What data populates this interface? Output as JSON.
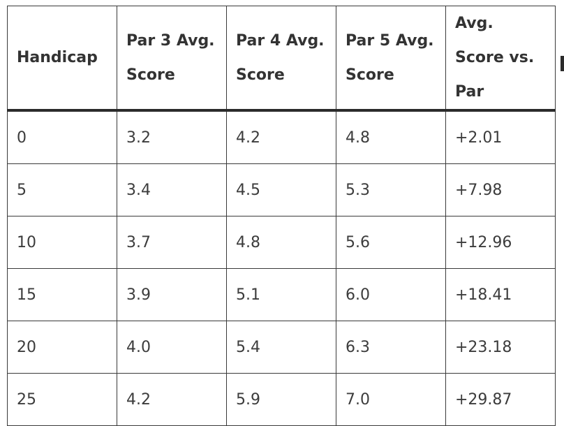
{
  "table": {
    "headers": [
      "Handicap",
      "Par 3 Avg. Score",
      "Par 4 Avg. Score",
      "Par 5 Avg. Score",
      "Avg. Score vs. Par"
    ],
    "rows": [
      [
        "0",
        "3.2",
        "4.2",
        "4.8",
        "+2.01"
      ],
      [
        "5",
        "3.4",
        "4.5",
        "5.3",
        "+7.98"
      ],
      [
        "10",
        "3.7",
        "4.8",
        "5.6",
        "+12.96"
      ],
      [
        "15",
        "3.9",
        "5.1",
        "6.0",
        "+18.41"
      ],
      [
        "20",
        "4.0",
        "5.4",
        "6.3",
        "+23.18"
      ],
      [
        "25",
        "4.2",
        "5.9",
        "7.0",
        "+29.87"
      ]
    ]
  }
}
